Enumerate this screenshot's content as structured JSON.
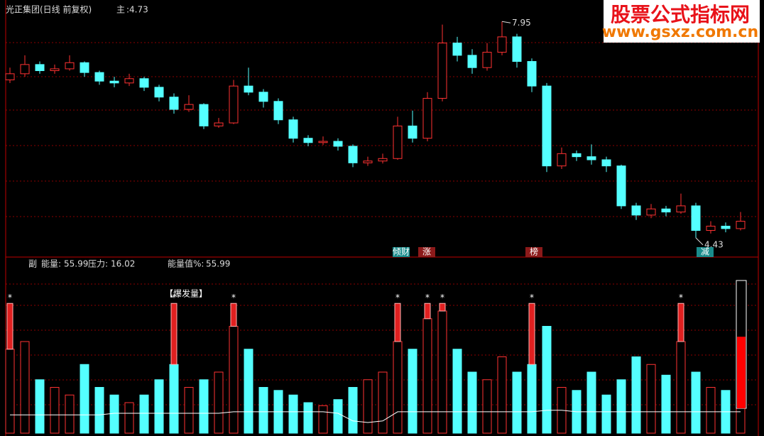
{
  "chart_data": {
    "type": "candlestick",
    "title": "光正集团(日线 前复权)",
    "main_label": "主",
    "main_value_label": ":4.73",
    "main_value": 4.73,
    "open": [
      7.0,
      7.1,
      7.25,
      7.15,
      7.18,
      7.28,
      7.12,
      6.98,
      6.95,
      7.02,
      6.88,
      6.72,
      6.52,
      6.6,
      6.25,
      6.3,
      6.9,
      6.8,
      6.65,
      6.35,
      6.05,
      5.98,
      6.0,
      5.92,
      5.65,
      5.68,
      5.72,
      6.25,
      6.05,
      6.7,
      7.6,
      7.4,
      7.2,
      7.45,
      7.7,
      7.3,
      6.9,
      5.6,
      5.8,
      5.75,
      5.7,
      5.6,
      4.95,
      4.8,
      4.9,
      4.85,
      4.95,
      4.55,
      4.62,
      4.58
    ],
    "high": [
      7.2,
      7.4,
      7.3,
      7.25,
      7.4,
      7.3,
      7.15,
      7.05,
      7.1,
      7.05,
      6.92,
      6.78,
      6.75,
      6.62,
      6.38,
      7.0,
      7.2,
      6.85,
      6.7,
      6.4,
      6.1,
      6.08,
      6.05,
      5.95,
      5.75,
      5.8,
      6.4,
      6.5,
      6.8,
      7.9,
      7.7,
      7.5,
      7.6,
      7.95,
      7.75,
      7.35,
      6.95,
      5.9,
      5.85,
      5.95,
      5.75,
      5.62,
      5.0,
      4.98,
      4.95,
      5.15,
      5.0,
      4.7,
      4.68,
      4.85
    ],
    "low": [
      6.95,
      7.05,
      7.1,
      7.1,
      7.15,
      7.05,
      6.92,
      6.88,
      6.9,
      6.82,
      6.65,
      6.45,
      6.48,
      6.2,
      6.22,
      6.28,
      6.75,
      6.55,
      6.28,
      5.98,
      5.92,
      5.94,
      5.85,
      5.58,
      5.6,
      5.64,
      5.7,
      5.98,
      6.0,
      6.65,
      7.3,
      7.1,
      7.15,
      7.4,
      7.2,
      6.8,
      5.5,
      5.55,
      5.68,
      5.62,
      5.5,
      4.9,
      4.72,
      4.75,
      4.78,
      4.82,
      4.43,
      4.5,
      4.52,
      4.55
    ],
    "close": [
      7.1,
      7.25,
      7.15,
      7.18,
      7.28,
      7.12,
      6.98,
      6.95,
      7.02,
      6.88,
      6.72,
      6.52,
      6.6,
      6.25,
      6.3,
      6.9,
      6.8,
      6.65,
      6.35,
      6.05,
      5.98,
      6.0,
      5.92,
      5.65,
      5.68,
      5.72,
      6.25,
      6.05,
      6.7,
      7.6,
      7.4,
      7.2,
      7.45,
      7.7,
      7.3,
      6.9,
      5.6,
      5.8,
      5.75,
      5.7,
      5.6,
      4.95,
      4.8,
      4.9,
      4.85,
      4.95,
      4.55,
      4.62,
      4.58,
      4.7
    ],
    "ylim": [
      4.14,
      8.3
    ],
    "max_label": "7.95",
    "max_value": 7.95,
    "min_label": "4.43",
    "min_value": 4.43,
    "annotations": [
      "倾财",
      "涨",
      "榜",
      "减"
    ],
    "up_color": "#ff3232",
    "down_color": "#54ffff",
    "sub": {
      "type": "bar",
      "label": "副",
      "energy_label": "能量:",
      "energy": 55.99,
      "pressure_label": "压力:",
      "pressure": 16.02,
      "energy_pct_label": "能量值%:",
      "energy_pct": 55.99,
      "burst_title": "【爆发量】",
      "burst_marker": "*",
      "ylim": [
        0,
        100
      ],
      "values": [
        55,
        60,
        35,
        30,
        25,
        45,
        30,
        25,
        20,
        25,
        35,
        45,
        30,
        35,
        40,
        70,
        55,
        30,
        28,
        25,
        20,
        18,
        22,
        30,
        35,
        40,
        60,
        55,
        75,
        80,
        55,
        40,
        35,
        50,
        40,
        45,
        70,
        30,
        28,
        40,
        25,
        35,
        50,
        45,
        38,
        60,
        40,
        30,
        28,
        20
      ],
      "burst_values": [
        85,
        null,
        null,
        null,
        null,
        null,
        null,
        null,
        null,
        null,
        null,
        85,
        null,
        null,
        null,
        85,
        null,
        null,
        null,
        null,
        null,
        null,
        null,
        null,
        null,
        null,
        85,
        null,
        85,
        85,
        null,
        null,
        null,
        null,
        null,
        85,
        null,
        null,
        null,
        null,
        null,
        null,
        null,
        null,
        null,
        85,
        null,
        null,
        null,
        null
      ],
      "pressure_values": [
        12,
        12,
        12,
        12,
        12,
        12,
        12,
        13,
        13,
        13,
        13,
        13,
        13,
        13,
        13,
        14,
        14,
        14,
        14,
        14,
        14,
        14,
        13,
        8,
        7,
        8,
        14,
        14,
        14,
        14,
        14,
        14,
        14,
        14,
        14,
        14,
        15,
        15,
        14,
        14,
        14,
        14,
        14,
        14,
        14,
        14,
        14,
        14,
        14,
        14
      ],
      "gauge_color": "#ff0000"
    },
    "watermark": {
      "title": "股票公式指标网",
      "url": "www.gsxz.com.cn"
    }
  }
}
